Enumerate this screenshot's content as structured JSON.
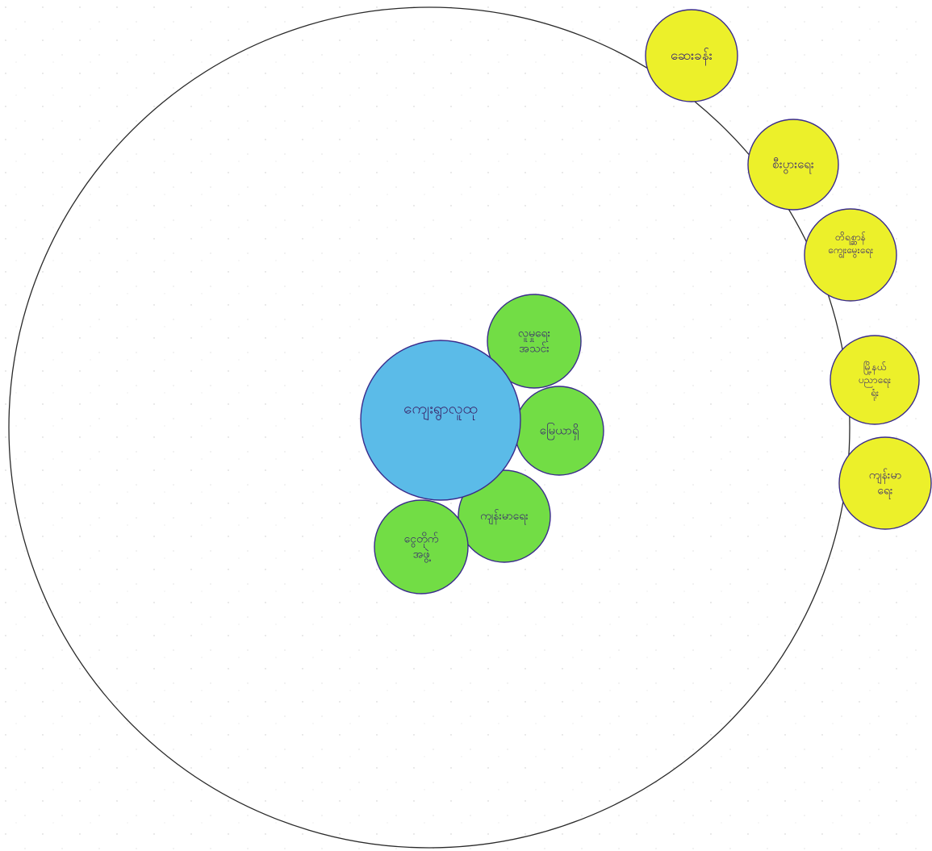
{
  "colors": {
    "boundary": "#2a2a2a",
    "center_fill": "#5bbbe8",
    "inner_fill": "#72dd45",
    "outer_fill": "#ecf02a",
    "bubble_stroke": "#3a2c8c",
    "label": "#3b2a6e"
  },
  "diagram": {
    "center": {
      "label": "ကျေးရွာလူထု"
    },
    "inner_ring": [
      {
        "label": "လူမှုရေး အသင်း"
      },
      {
        "label": "မြေယာရှိ"
      },
      {
        "label": "ကျန်းမာရေး"
      },
      {
        "label": "ငွေတိုက် အဖွဲ့"
      }
    ],
    "outer_ring": [
      {
        "label": "ဆေးခန်း"
      },
      {
        "label": "စီးပွားရေး"
      },
      {
        "label": "တိရစ္ဆာန် ကျွေးမွေးရေး"
      },
      {
        "label": "မြို့နယ် ပညာရေး ရုံး"
      },
      {
        "label": "ကျန်းမာ ရေး"
      }
    ]
  }
}
